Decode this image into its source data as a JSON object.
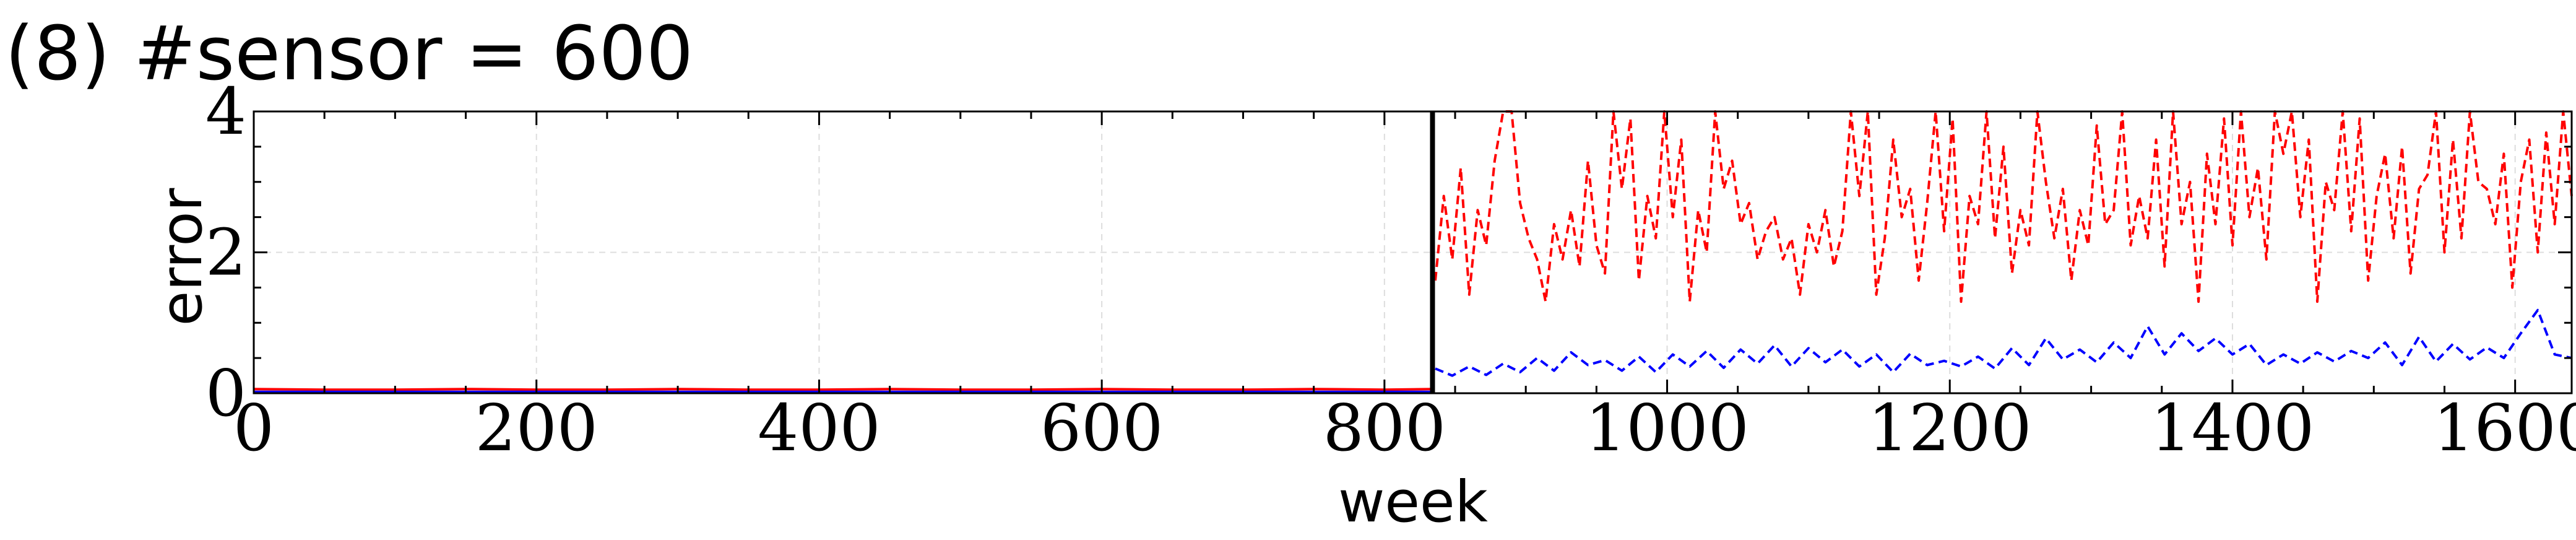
{
  "chart_data": {
    "type": "line",
    "title": "(8) #sensor = 600",
    "xlabel": "week",
    "ylabel": "error",
    "xlim": [
      0,
      1640
    ],
    "ylim": [
      0,
      4
    ],
    "xticks": [
      0,
      200,
      400,
      600,
      800,
      1000,
      1200,
      1400,
      1600
    ],
    "yticks": [
      0,
      2,
      4
    ],
    "grid": true,
    "legend": "none",
    "vertical_marker": {
      "x": 834,
      "color": "#000000"
    },
    "series": [
      {
        "color": "#ff0000",
        "style": "solid",
        "x": [
          0,
          50,
          100,
          150,
          200,
          250,
          300,
          350,
          400,
          450,
          500,
          550,
          600,
          650,
          700,
          750,
          800,
          834
        ],
        "values": [
          0.06,
          0.05,
          0.05,
          0.06,
          0.05,
          0.05,
          0.06,
          0.05,
          0.05,
          0.06,
          0.05,
          0.05,
          0.06,
          0.05,
          0.05,
          0.06,
          0.05,
          0.06
        ]
      },
      {
        "color": "#ff0000",
        "style": "dashed",
        "x": [
          836,
          842,
          848,
          854,
          860,
          866,
          872,
          878,
          884,
          890,
          896,
          902,
          908,
          914,
          920,
          926,
          932,
          938,
          944,
          950,
          956,
          962,
          968,
          974,
          980,
          986,
          992,
          998,
          1004,
          1010,
          1016,
          1022,
          1028,
          1034,
          1040,
          1046,
          1052,
          1058,
          1064,
          1070,
          1076,
          1082,
          1088,
          1094,
          1100,
          1106,
          1112,
          1118,
          1124,
          1130,
          1136,
          1142,
          1148,
          1154,
          1160,
          1166,
          1172,
          1178,
          1184,
          1190,
          1196,
          1202,
          1208,
          1214,
          1220,
          1226,
          1232,
          1238,
          1244,
          1250,
          1256,
          1262,
          1268,
          1274,
          1280,
          1286,
          1292,
          1298,
          1304,
          1310,
          1316,
          1322,
          1328,
          1334,
          1340,
          1346,
          1352,
          1358,
          1364,
          1370,
          1376,
          1382,
          1388,
          1394,
          1400,
          1406,
          1412,
          1418,
          1424,
          1430,
          1436,
          1442,
          1448,
          1454,
          1460,
          1466,
          1472,
          1478,
          1484,
          1490,
          1496,
          1502,
          1508,
          1514,
          1520,
          1526,
          1532,
          1538,
          1544,
          1550,
          1556,
          1562,
          1568,
          1574,
          1580,
          1586,
          1592,
          1598,
          1604,
          1610,
          1616,
          1622,
          1628,
          1634,
          1640
        ],
        "values": [
          1.6,
          2.8,
          1.9,
          3.2,
          1.4,
          2.6,
          2.1,
          3.3,
          4.0,
          4.0,
          2.7,
          2.2,
          1.9,
          1.3,
          2.4,
          1.9,
          2.6,
          1.8,
          3.3,
          2.1,
          1.7,
          4.0,
          2.9,
          3.9,
          1.6,
          2.8,
          2.2,
          4.0,
          2.5,
          3.6,
          1.3,
          2.6,
          2.0,
          4.0,
          2.9,
          3.3,
          2.4,
          2.7,
          1.9,
          2.3,
          2.5,
          1.9,
          2.2,
          1.4,
          2.4,
          2.0,
          2.6,
          1.8,
          2.3,
          4.0,
          2.8,
          4.0,
          1.4,
          2.2,
          3.6,
          2.5,
          2.9,
          1.6,
          2.7,
          4.0,
          2.3,
          3.9,
          1.3,
          2.8,
          2.4,
          4.0,
          2.2,
          3.5,
          1.7,
          2.6,
          2.1,
          4.0,
          3.0,
          2.2,
          2.9,
          1.6,
          2.6,
          2.1,
          3.8,
          2.4,
          2.6,
          4.0,
          2.1,
          2.8,
          2.2,
          3.6,
          1.8,
          4.0,
          2.4,
          3.0,
          1.3,
          3.4,
          2.4,
          3.9,
          2.1,
          4.0,
          2.5,
          3.2,
          1.9,
          4.0,
          3.4,
          4.0,
          2.5,
          3.6,
          1.3,
          3.0,
          2.6,
          4.0,
          2.3,
          3.9,
          1.6,
          2.8,
          3.4,
          2.2,
          3.5,
          1.7,
          2.9,
          3.1,
          4.0,
          2.0,
          3.6,
          2.2,
          4.0,
          3.0,
          2.9,
          2.4,
          3.4,
          1.5,
          3.0,
          3.6,
          2.0,
          3.7,
          2.4,
          4.0,
          2.8
        ]
      },
      {
        "color": "#0000ff",
        "style": "solid",
        "x": [
          0,
          100,
          200,
          300,
          400,
          500,
          600,
          700,
          834
        ],
        "values": [
          0.02,
          0.02,
          0.02,
          0.02,
          0.02,
          0.02,
          0.02,
          0.02,
          0.02
        ]
      },
      {
        "color": "#0000ff",
        "style": "dashed",
        "x": [
          836,
          848,
          860,
          872,
          884,
          896,
          908,
          920,
          932,
          944,
          956,
          968,
          980,
          992,
          1004,
          1016,
          1028,
          1040,
          1052,
          1064,
          1076,
          1088,
          1100,
          1112,
          1124,
          1136,
          1148,
          1160,
          1172,
          1184,
          1196,
          1208,
          1220,
          1232,
          1244,
          1256,
          1268,
          1280,
          1292,
          1304,
          1316,
          1328,
          1340,
          1352,
          1364,
          1376,
          1388,
          1400,
          1412,
          1424,
          1436,
          1448,
          1460,
          1472,
          1484,
          1496,
          1508,
          1520,
          1532,
          1544,
          1556,
          1568,
          1580,
          1592,
          1604,
          1616,
          1628,
          1640
        ],
        "values": [
          0.35,
          0.25,
          0.38,
          0.26,
          0.42,
          0.3,
          0.5,
          0.32,
          0.58,
          0.4,
          0.47,
          0.32,
          0.52,
          0.3,
          0.55,
          0.38,
          0.6,
          0.36,
          0.62,
          0.42,
          0.68,
          0.38,
          0.64,
          0.44,
          0.62,
          0.38,
          0.55,
          0.3,
          0.56,
          0.4,
          0.46,
          0.38,
          0.52,
          0.35,
          0.64,
          0.4,
          0.78,
          0.48,
          0.62,
          0.44,
          0.72,
          0.5,
          0.95,
          0.55,
          0.85,
          0.6,
          0.78,
          0.55,
          0.7,
          0.4,
          0.55,
          0.42,
          0.58,
          0.45,
          0.6,
          0.5,
          0.72,
          0.4,
          0.8,
          0.45,
          0.7,
          0.48,
          0.65,
          0.5,
          0.85,
          1.18,
          0.55,
          0.5
        ]
      }
    ]
  }
}
